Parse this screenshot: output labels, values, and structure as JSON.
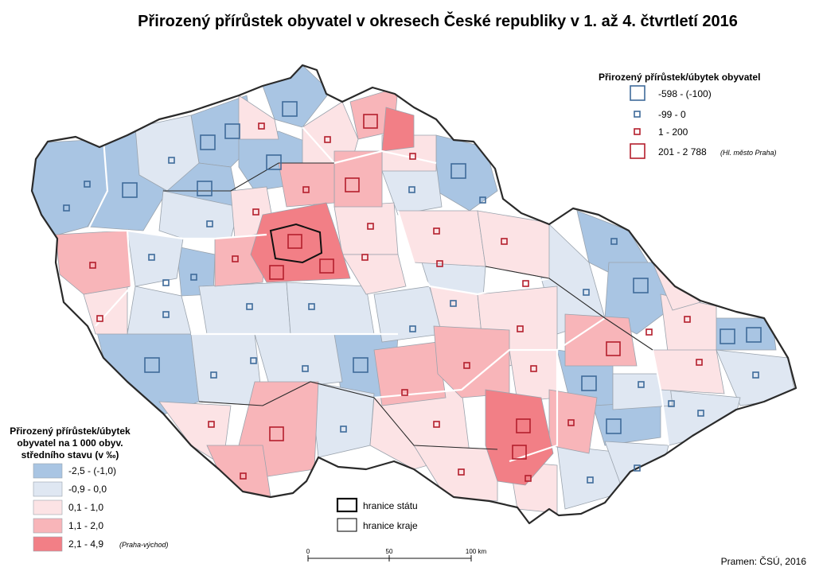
{
  "title": "Přirozený přírůstek obyvatel v okresech České republiky v 1. až 4. čtvrtletí 2016",
  "colors": {
    "class1": "#a9c5e3",
    "class2": "#dfe7f2",
    "class3": "#fce3e5",
    "class4": "#f8b5b9",
    "class5": "#f27f86",
    "symbol_negative": "#3f6b9a",
    "symbol_positive": "#b41e2c"
  },
  "symbol_legend": {
    "title": "Přirozený přírůstek/úbytek obyvatel",
    "items": [
      {
        "label": "-598 - (-100)",
        "kind": "negative-large"
      },
      {
        "label": "-99 - 0",
        "kind": "negative-small"
      },
      {
        "label": "1 - 200",
        "kind": "positive-small"
      },
      {
        "label": "201 - 2 788",
        "note": "(Hl. město Praha)",
        "kind": "positive-large"
      }
    ]
  },
  "rate_legend": {
    "title_lines": [
      "Přirozený přírůstek/úbytek",
      "obyvatel na 1 000 obyv.",
      "středního stavu (v ‰)"
    ],
    "items": [
      {
        "label": "-2,5 - (-1,0)",
        "color_key": "class1"
      },
      {
        "label": "-0,9 - 0,0",
        "color_key": "class2"
      },
      {
        "label": "0,1 - 1,0",
        "color_key": "class3"
      },
      {
        "label": "1,1 - 2,0",
        "color_key": "class4"
      },
      {
        "label": "2,1 - 4,9",
        "note": "(Praha-východ)",
        "color_key": "class5"
      }
    ]
  },
  "border_legend": {
    "items": [
      {
        "label": "hranice státu",
        "kind": "state"
      },
      {
        "label": "hranice kraje",
        "kind": "region"
      }
    ]
  },
  "scale_bar": {
    "ticks": [
      "0",
      "50",
      "100 km"
    ]
  },
  "source": "Pramen: ČSÚ, 2016"
}
